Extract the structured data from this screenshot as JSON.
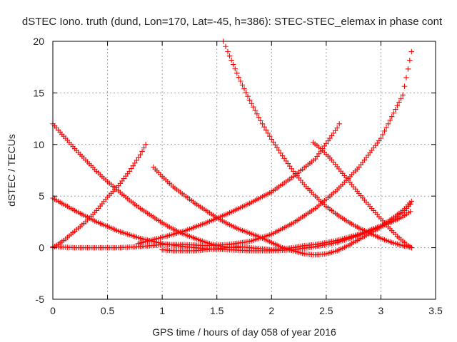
{
  "chart_data": {
    "type": "scatter",
    "title": "dSTEC Iono. truth (dund, Lon=170, Lat=-45, h=386): STEC-STEC_elemax in phase cont",
    "xlabel": "GPS time / hours of day 058 of year 2016",
    "ylabel": "dSTEC  / TECUs",
    "xlim": [
      0,
      3.5
    ],
    "ylim": [
      -5,
      20
    ],
    "xticks": [
      "0",
      "0.5",
      "1",
      "1.5",
      "2",
      "2.5",
      "3",
      "3.5"
    ],
    "yticks": [
      "-5",
      "0",
      "5",
      "10",
      "15",
      "20"
    ],
    "grid": true,
    "marker": "+",
    "color": "#ff0000",
    "series": [
      {
        "x": [
          0.0,
          0.1,
          0.2,
          0.3,
          0.4,
          0.5,
          0.6,
          0.7,
          0.8,
          0.85
        ],
        "values": [
          0.0,
          0.7,
          1.6,
          2.5,
          3.6,
          4.9,
          6.0,
          7.4,
          9.0,
          10.0
        ]
      },
      {
        "x": [
          0.0,
          0.1,
          0.2,
          0.3,
          0.4,
          0.5,
          0.6,
          0.7,
          0.8,
          0.9,
          1.0,
          1.1,
          1.2,
          1.3,
          1.4,
          1.5,
          1.6,
          1.7
        ],
        "values": [
          12.0,
          10.8,
          9.6,
          8.5,
          7.4,
          6.4,
          5.5,
          4.6,
          3.8,
          3.1,
          2.4,
          1.8,
          1.3,
          0.9,
          0.5,
          0.2,
          0.05,
          0.0
        ]
      },
      {
        "x": [
          0.0,
          0.2,
          0.4,
          0.6,
          0.8,
          1.0,
          1.2,
          1.4,
          1.6,
          1.8,
          2.0,
          2.2,
          2.4,
          2.6,
          2.8,
          3.0,
          3.1,
          3.2,
          3.28
        ],
        "values": [
          4.8,
          3.6,
          2.5,
          1.6,
          0.9,
          0.4,
          0.1,
          -0.1,
          -0.2,
          -0.3,
          -0.3,
          -0.2,
          0.1,
          0.5,
          1.2,
          2.1,
          2.8,
          3.6,
          4.5
        ]
      },
      {
        "x": [
          0.0,
          0.2,
          0.4,
          0.6,
          0.8,
          1.0,
          1.2,
          1.4,
          1.6,
          1.8,
          2.0,
          2.2,
          2.4,
          2.6,
          2.8,
          3.0,
          3.2,
          3.28
        ],
        "values": [
          0.1,
          0.0,
          0.0,
          0.0,
          0.1,
          0.3,
          0.3,
          0.2,
          0.3,
          0.6,
          1.3,
          2.4,
          3.8,
          5.6,
          7.8,
          10.6,
          14.8,
          19.0
        ]
      },
      {
        "x": [
          0.78,
          1.0,
          1.2,
          1.4,
          1.6,
          1.8,
          2.0,
          2.2,
          2.4,
          2.6,
          2.62
        ],
        "values": [
          0.4,
          1.0,
          1.6,
          2.4,
          3.3,
          4.3,
          5.4,
          6.9,
          8.6,
          11.6,
          12.0
        ]
      },
      {
        "x": [
          0.92,
          1.0,
          1.1,
          1.2,
          1.3,
          1.4,
          1.5,
          1.6,
          1.7,
          1.8,
          1.9,
          2.0,
          2.1,
          2.2,
          2.3,
          2.4,
          2.5,
          2.6,
          2.7,
          2.8,
          2.9,
          3.0,
          3.1,
          3.2,
          3.27
        ],
        "values": [
          7.8,
          6.9,
          5.9,
          5.1,
          4.3,
          3.6,
          2.9,
          2.3,
          1.8,
          1.4,
          1.0,
          0.5,
          0.0,
          -0.3,
          -0.6,
          -0.7,
          -0.6,
          -0.3,
          0.2,
          0.8,
          1.4,
          2.0,
          2.7,
          3.4,
          4.2
        ]
      },
      {
        "x": [
          1.0,
          1.1,
          1.2,
          1.3,
          1.4,
          1.5,
          1.6,
          1.7,
          1.8,
          1.9,
          2.0,
          2.1,
          2.2,
          2.3,
          2.4,
          2.5,
          2.6,
          2.7,
          2.8,
          2.9,
          3.0,
          3.1,
          3.2,
          3.27
        ],
        "values": [
          -0.2,
          -0.3,
          -0.3,
          -0.3,
          -0.2,
          -0.1,
          0.0,
          0.1,
          0.0,
          -0.1,
          -0.2,
          -0.1,
          0.0,
          0.2,
          0.3,
          0.5,
          0.7,
          1.0,
          1.3,
          1.7,
          2.1,
          2.5,
          3.0,
          3.5
        ]
      },
      {
        "x": [
          1.56,
          1.6,
          1.7,
          1.8,
          1.9,
          2.0,
          2.1,
          2.2,
          2.3,
          2.4,
          2.5,
          2.6,
          2.7,
          2.8,
          2.9,
          3.0,
          3.1,
          3.2,
          3.28
        ],
        "values": [
          20.0,
          19.0,
          16.5,
          14.3,
          12.3,
          10.5,
          8.9,
          7.4,
          6.1,
          5.0,
          4.0,
          3.2,
          2.5,
          1.9,
          1.4,
          0.9,
          0.5,
          0.2,
          0.0
        ]
      },
      {
        "x": [
          2.38,
          2.45,
          2.55,
          2.65,
          2.75,
          2.85,
          2.95,
          3.05,
          3.15,
          3.25,
          3.28
        ],
        "values": [
          10.2,
          9.6,
          8.5,
          7.2,
          5.9,
          4.6,
          3.4,
          2.2,
          1.1,
          0.2,
          0.0
        ]
      }
    ]
  }
}
